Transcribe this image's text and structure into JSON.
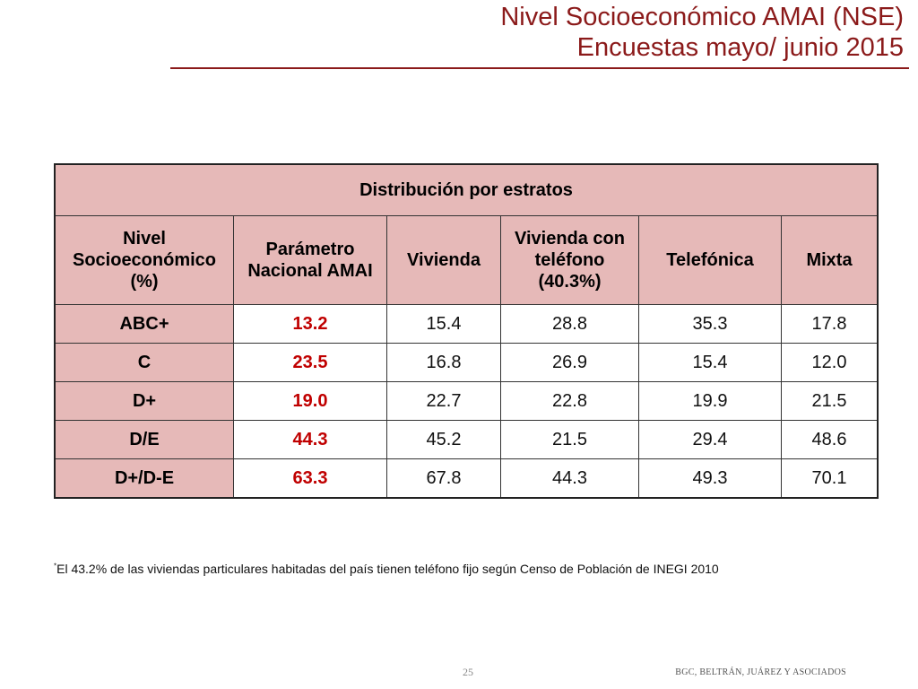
{
  "title": {
    "line1": "Nivel Socioeconómico AMAI (NSE)",
    "line2": "Encuestas mayo/ junio 2015"
  },
  "table": {
    "caption": "Distribución por estratos",
    "headers": [
      "Nivel Socioeconómico (%)",
      "Parámetro Nacional AMAI",
      "Vivienda",
      "Vivienda con teléfono (40.3%)",
      "Telefónica",
      "Mixta"
    ],
    "rows": [
      {
        "label": "ABC+",
        "values": [
          "13.2",
          "15.4",
          "28.8",
          "35.3",
          "17.8"
        ]
      },
      {
        "label": "C",
        "values": [
          "23.5",
          "16.8",
          "26.9",
          "15.4",
          "12.0"
        ]
      },
      {
        "label": "D+",
        "values": [
          "19.0",
          "22.7",
          "22.8",
          "19.9",
          "21.5"
        ]
      },
      {
        "label": "D/E",
        "values": [
          "44.3",
          "45.2",
          "21.5",
          "29.4",
          "48.6"
        ]
      },
      {
        "label": "D+/D-E",
        "values": [
          "63.3",
          "67.8",
          "44.3",
          "49.3",
          "70.1"
        ]
      }
    ],
    "colors": {
      "header_bg": "#e6b9b8",
      "param_text": "#c00000"
    }
  },
  "footnote": {
    "marker": "*",
    "text": "El 43.2% de las viviendas particulares habitadas del país tienen teléfono fijo según Censo de Población de INEGI 2010"
  },
  "footer": {
    "page_number": "25",
    "company": "BGC, BELTRÁN, JUÁREZ Y ASOCIADOS"
  },
  "colors": {
    "title": "#8b1a1a"
  }
}
